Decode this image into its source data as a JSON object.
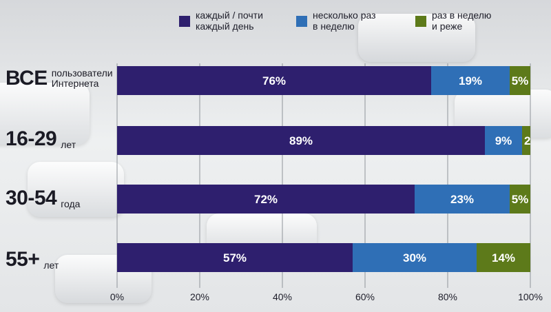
{
  "chart_data": {
    "type": "bar",
    "orientation": "horizontal",
    "stacked": true,
    "legend_position": "top",
    "xlim": [
      0,
      100
    ],
    "x_ticks": [
      "0%",
      "20%",
      "40%",
      "60%",
      "80%",
      "100%"
    ],
    "categories": [
      {
        "main": "ВСЕ",
        "sub": "пользователи\nИнтернета"
      },
      {
        "main": "16-29",
        "sub": "лет"
      },
      {
        "main": "30-54",
        "sub": "года"
      },
      {
        "main": "55+",
        "sub": "лет"
      }
    ],
    "series": [
      {
        "name": "каждый / почти\nкаждый день",
        "color": "#2e1f6e",
        "values": [
          76,
          89,
          72,
          57
        ],
        "labels": [
          "76%",
          "89%",
          "72%",
          "57%"
        ]
      },
      {
        "name": "несколько раз\nв неделю",
        "color": "#2f6fb6",
        "values": [
          19,
          9,
          23,
          30
        ],
        "labels": [
          "19%",
          "9%",
          "23%",
          "30%"
        ]
      },
      {
        "name": "раз в неделю\nи реже",
        "color": "#5d7a1a",
        "values": [
          5,
          2,
          5,
          14
        ],
        "labels": [
          "5%",
          "2",
          "5%",
          "14%"
        ]
      }
    ]
  }
}
